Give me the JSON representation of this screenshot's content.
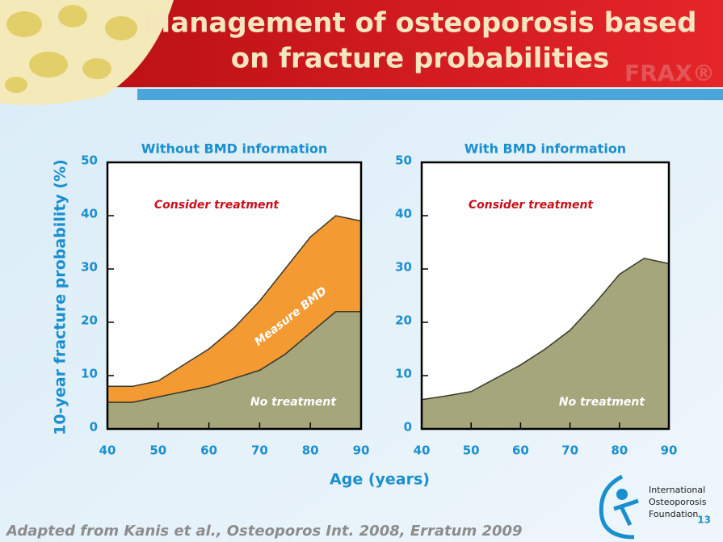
{
  "slide": {
    "title_lines": [
      "Management of osteoporosis based",
      "on fracture probabilities"
    ],
    "watermark": "FRAX®",
    "source": "Adapted from Kanis et al., Osteoporos Int. 2008, Erratum 2009",
    "logo_lines": [
      "International",
      "Osteoporosis",
      "Foundation"
    ],
    "page": "13"
  },
  "chart_data": [
    {
      "type": "area",
      "stacked": true,
      "title": "Without BMD information",
      "ylabel": "10-year fracture probability (%)",
      "xlabel": "Age (years)",
      "x": [
        40,
        45,
        50,
        55,
        60,
        65,
        70,
        75,
        80,
        85,
        90
      ],
      "series": [
        {
          "name": "No treatment",
          "color": "#a5a67b",
          "values": [
            5,
            5,
            6,
            7,
            8,
            9.5,
            11,
            14,
            18,
            22,
            22
          ]
        },
        {
          "name": "Measure BMD",
          "color": "#f39a33",
          "values": [
            3,
            3,
            3,
            5,
            7,
            9.5,
            13,
            16,
            18,
            18,
            17
          ]
        }
      ],
      "annotations": [
        "Consider treatment"
      ],
      "xlim": [
        40,
        90
      ],
      "xticks": [
        40,
        50,
        60,
        70,
        80,
        90
      ],
      "ylim": [
        0,
        50
      ],
      "yticks": [
        0,
        10,
        20,
        30,
        40,
        50
      ]
    },
    {
      "type": "area",
      "stacked": true,
      "title": "With BMD information",
      "x": [
        40,
        45,
        50,
        55,
        60,
        65,
        70,
        75,
        80,
        85,
        90
      ],
      "series": [
        {
          "name": "No treatment",
          "color": "#a5a67b",
          "values": [
            5.5,
            6.2,
            7,
            9.5,
            12,
            15,
            18.5,
            23.5,
            29,
            32,
            31
          ]
        }
      ],
      "annotations": [
        "Consider treatment"
      ],
      "xlim": [
        40,
        90
      ],
      "xticks": [
        40,
        50,
        60,
        70,
        80,
        90
      ],
      "ylim": [
        0,
        50
      ],
      "yticks": [
        0,
        10,
        20,
        30,
        40,
        50
      ]
    }
  ]
}
